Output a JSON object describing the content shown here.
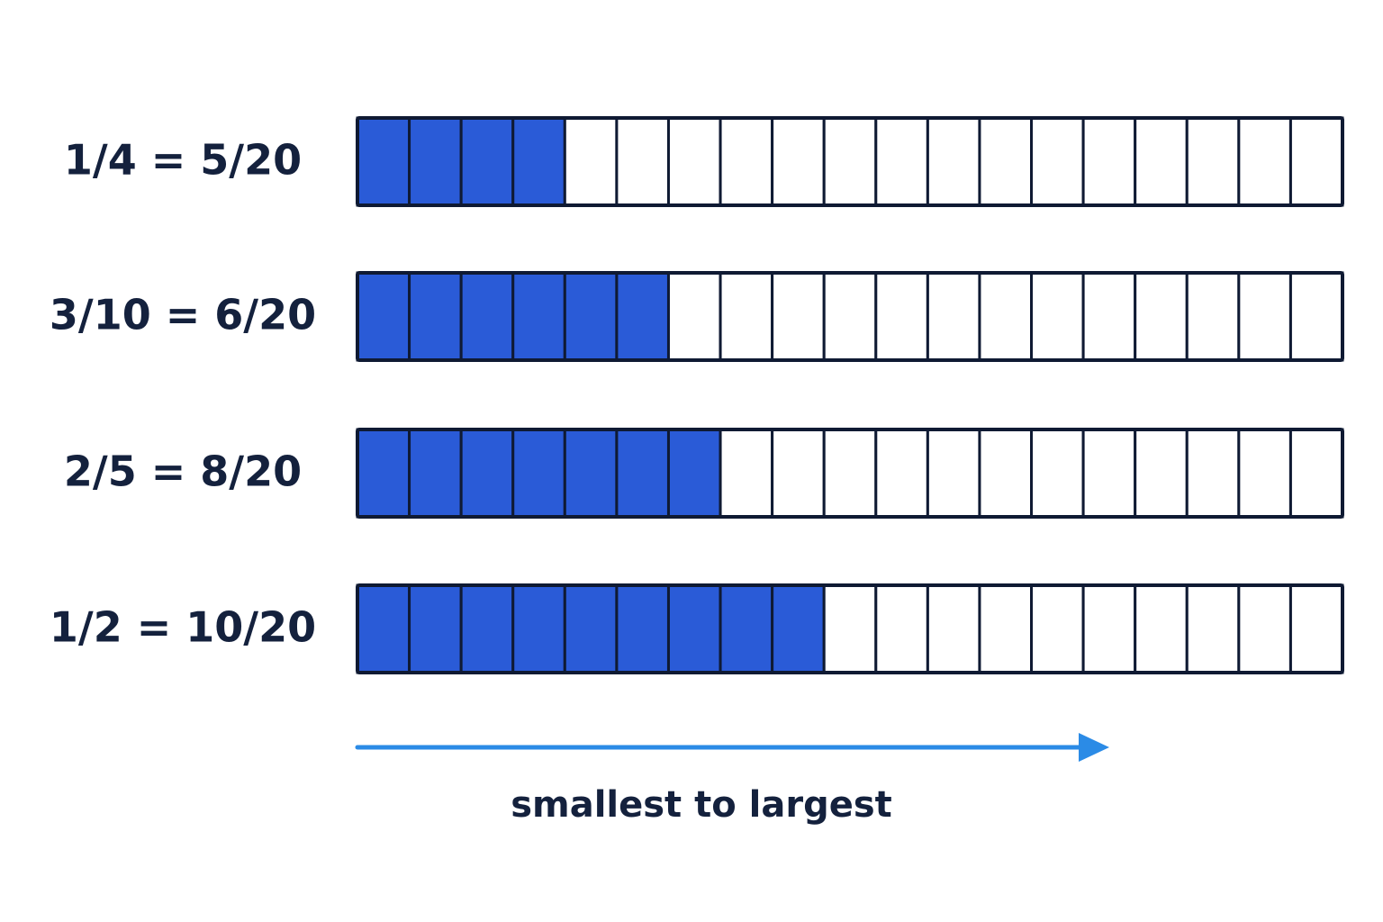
{
  "rows": [
    {
      "label": "1/4 = 5/20",
      "cells": 19,
      "shaded": 4
    },
    {
      "label": "3/10 = 6/20",
      "cells": 19,
      "shaded": 6
    },
    {
      "label": "2/5 = 8/20",
      "cells": 19,
      "shaded": 7
    },
    {
      "label": "1/2 = 10/20",
      "cells": 19,
      "shaded": 9
    }
  ],
  "caption": "smallest to largest"
}
